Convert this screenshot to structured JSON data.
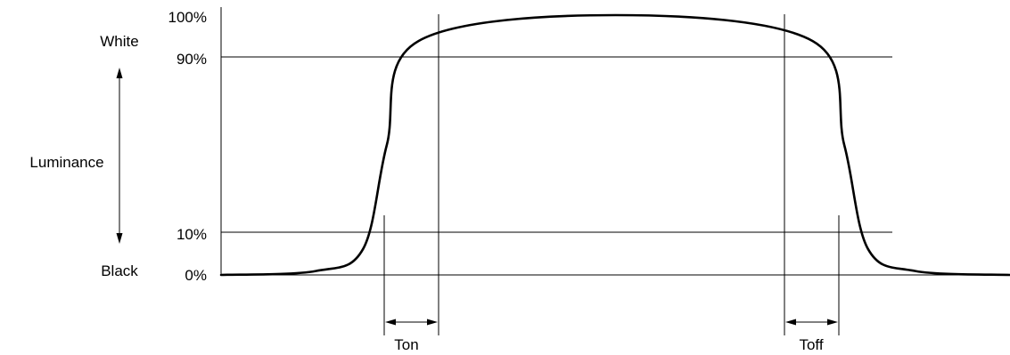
{
  "chart_data": {
    "type": "line",
    "title": "",
    "xlabel": "",
    "ylabel": "Luminance",
    "y_top_label": "White",
    "y_bottom_label": "Black",
    "y_ticks": [
      "100%",
      "90%",
      "10%",
      "0%"
    ],
    "ylim": [
      0,
      100
    ],
    "grid": false,
    "series": [
      {
        "name": "",
        "points": [
          {
            "x": 0,
            "y": 0
          },
          {
            "x": 12,
            "y": 1.5
          },
          {
            "x": 18,
            "y": 10
          },
          {
            "x": 21,
            "y": 50
          },
          {
            "x": 25,
            "y": 90
          },
          {
            "x": 50,
            "y": 100
          },
          {
            "x": 75,
            "y": 90
          },
          {
            "x": 79,
            "y": 50
          },
          {
            "x": 82,
            "y": 10
          },
          {
            "x": 88,
            "y": 1.5
          },
          {
            "x": 100,
            "y": 0
          }
        ]
      }
    ],
    "intervals": [
      {
        "label": "Ton",
        "from_level": "10%",
        "to_level": "90%",
        "edge": "rising"
      },
      {
        "label": "Toff",
        "from_level": "90%",
        "to_level": "10%",
        "edge": "falling"
      }
    ]
  }
}
